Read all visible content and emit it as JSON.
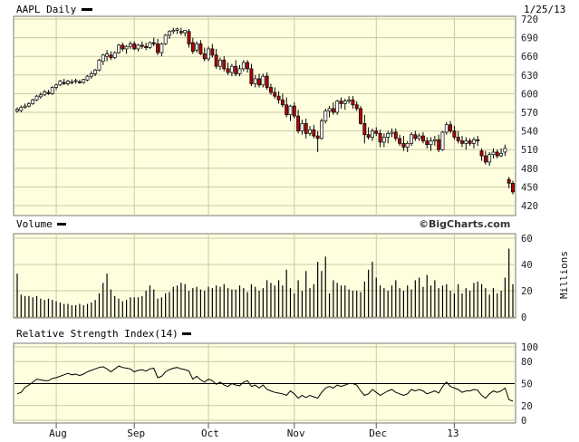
{
  "chart_data": {
    "type": "candlestick",
    "symbol_label": "AAPL Daily",
    "date_label": "1/25/13",
    "watermark": "©BigCharts.com",
    "months": [
      {
        "label": "Aug",
        "index": 10
      },
      {
        "label": "Sep",
        "index": 30
      },
      {
        "label": "Oct",
        "index": 49
      },
      {
        "label": "Nov",
        "index": 71
      },
      {
        "label": "Dec",
        "index": 92
      },
      {
        "label": "13",
        "index": 112
      }
    ],
    "price": {
      "ylim": [
        420,
        720
      ],
      "yticks": [
        "720",
        "690",
        "660",
        "630",
        "600",
        "570",
        "540",
        "510",
        "480",
        "450",
        "420"
      ],
      "ohlc": [
        [
          572,
          578,
          569,
          575
        ],
        [
          573,
          581,
          570,
          578
        ],
        [
          578,
          584,
          576,
          580
        ],
        [
          580,
          586,
          578,
          584
        ],
        [
          584,
          592,
          582,
          590
        ],
        [
          590,
          598,
          588,
          596
        ],
        [
          595,
          602,
          592,
          598
        ],
        [
          598,
          606,
          596,
          603
        ],
        [
          602,
          606,
          598,
          600
        ],
        [
          600,
          612,
          598,
          610
        ],
        [
          610,
          616,
          606,
          614
        ],
        [
          614,
          622,
          612,
          620
        ],
        [
          618,
          624,
          614,
          616
        ],
        [
          616,
          622,
          613,
          620
        ],
        [
          618,
          623,
          615,
          619
        ],
        [
          620,
          624,
          616,
          621
        ],
        [
          619,
          622,
          616,
          618
        ],
        [
          618,
          624,
          616,
          623
        ],
        [
          622,
          630,
          620,
          628
        ],
        [
          628,
          636,
          624,
          632
        ],
        [
          632,
          640,
          628,
          638
        ],
        [
          638,
          656,
          636,
          654
        ],
        [
          652,
          664,
          646,
          662
        ],
        [
          660,
          670,
          652,
          664
        ],
        [
          662,
          668,
          654,
          658
        ],
        [
          658,
          668,
          656,
          666
        ],
        [
          666,
          680,
          664,
          678
        ],
        [
          678,
          682,
          668,
          672
        ],
        [
          672,
          678,
          664,
          676
        ],
        [
          676,
          684,
          672,
          680
        ],
        [
          680,
          684,
          670,
          672
        ],
        [
          672,
          680,
          668,
          678
        ],
        [
          678,
          684,
          672,
          676
        ],
        [
          676,
          682,
          670,
          674
        ],
        [
          674,
          684,
          672,
          682
        ],
        [
          682,
          690,
          676,
          680
        ],
        [
          680,
          688,
          662,
          666
        ],
        [
          666,
          682,
          660,
          680
        ],
        [
          680,
          696,
          678,
          694
        ],
        [
          694,
          702,
          688,
          700
        ],
        [
          700,
          706,
          696,
          702
        ],
        [
          702,
          706,
          696,
          704
        ],
        [
          700,
          706,
          694,
          698
        ],
        [
          698,
          702,
          692,
          702
        ],
        [
          700,
          704,
          674,
          680
        ],
        [
          682,
          690,
          664,
          668
        ],
        [
          670,
          684,
          666,
          680
        ],
        [
          680,
          686,
          662,
          664
        ],
        [
          664,
          674,
          652,
          656
        ],
        [
          656,
          676,
          652,
          672
        ],
        [
          672,
          680,
          658,
          662
        ],
        [
          662,
          672,
          640,
          644
        ],
        [
          644,
          658,
          638,
          654
        ],
        [
          654,
          660,
          636,
          640
        ],
        [
          640,
          650,
          630,
          634
        ],
        [
          634,
          648,
          628,
          644
        ],
        [
          644,
          654,
          628,
          632
        ],
        [
          632,
          646,
          628,
          640
        ],
        [
          640,
          654,
          636,
          650
        ],
        [
          650,
          654,
          634,
          640
        ],
        [
          640,
          648,
          612,
          616
        ],
        [
          616,
          630,
          610,
          624
        ],
        [
          624,
          632,
          610,
          614
        ],
        [
          614,
          632,
          610,
          628
        ],
        [
          628,
          634,
          606,
          610
        ],
        [
          610,
          616,
          598,
          602
        ],
        [
          602,
          610,
          592,
          596
        ],
        [
          596,
          604,
          584,
          590
        ],
        [
          590,
          600,
          578,
          582
        ],
        [
          582,
          594,
          562,
          566
        ],
        [
          566,
          582,
          556,
          580
        ],
        [
          580,
          586,
          560,
          564
        ],
        [
          564,
          574,
          536,
          540
        ],
        [
          540,
          558,
          534,
          552
        ],
        [
          552,
          560,
          528,
          536
        ],
        [
          536,
          548,
          532,
          542
        ],
        [
          542,
          550,
          528,
          532
        ],
        [
          532,
          540,
          506,
          528
        ],
        [
          528,
          560,
          526,
          556
        ],
        [
          556,
          576,
          552,
          572
        ],
        [
          572,
          580,
          562,
          576
        ],
        [
          576,
          586,
          566,
          570
        ],
        [
          570,
          590,
          566,
          588
        ],
        [
          588,
          594,
          576,
          584
        ],
        [
          584,
          592,
          574,
          588
        ],
        [
          588,
          596,
          584,
          590
        ],
        [
          590,
          596,
          576,
          582
        ],
        [
          582,
          588,
          572,
          576
        ],
        [
          576,
          580,
          550,
          552
        ],
        [
          552,
          566,
          520,
          534
        ],
        [
          534,
          546,
          526,
          530
        ],
        [
          530,
          544,
          524,
          540
        ],
        [
          540,
          546,
          532,
          536
        ],
        [
          536,
          542,
          514,
          522
        ],
        [
          522,
          536,
          514,
          530
        ],
        [
          530,
          540,
          520,
          536
        ],
        [
          536,
          544,
          530,
          538
        ],
        [
          538,
          544,
          524,
          528
        ],
        [
          528,
          534,
          516,
          520
        ],
        [
          520,
          532,
          508,
          514
        ],
        [
          514,
          524,
          506,
          520
        ],
        [
          520,
          538,
          516,
          534
        ],
        [
          534,
          540,
          524,
          528
        ],
        [
          528,
          536,
          524,
          532
        ],
        [
          532,
          538,
          520,
          524
        ],
        [
          524,
          530,
          512,
          518
        ],
        [
          518,
          530,
          508,
          524
        ],
        [
          524,
          532,
          516,
          526
        ],
        [
          526,
          534,
          506,
          510
        ],
        [
          510,
          540,
          508,
          538
        ],
        [
          538,
          554,
          534,
          550
        ],
        [
          550,
          556,
          536,
          540
        ],
        [
          540,
          548,
          526,
          530
        ],
        [
          530,
          540,
          520,
          524
        ],
        [
          524,
          532,
          514,
          520
        ],
        [
          520,
          530,
          510,
          524
        ],
        [
          524,
          528,
          516,
          520
        ],
        [
          520,
          530,
          512,
          526
        ],
        [
          526,
          532,
          516,
          524
        ],
        [
          508,
          512,
          492,
          500
        ],
        [
          500,
          508,
          486,
          490
        ],
        [
          490,
          506,
          484,
          502
        ],
        [
          502,
          512,
          496,
          506
        ],
        [
          506,
          510,
          496,
          500
        ],
        [
          500,
          512,
          498,
          504
        ],
        [
          506,
          518,
          500,
          512
        ],
        [
          462,
          466,
          448,
          456
        ],
        [
          456,
          460,
          438,
          442
        ]
      ]
    },
    "volume": {
      "label": "Volume",
      "unit": "Millions",
      "ylim": [
        0,
        60
      ],
      "yticks": [
        "60",
        "40",
        "20",
        "0"
      ],
      "values": [
        33,
        17,
        16,
        16,
        15,
        16,
        14,
        13,
        14,
        13,
        12,
        11,
        10,
        10,
        9,
        9,
        10,
        9,
        10,
        11,
        13,
        18,
        26,
        33,
        21,
        16,
        14,
        12,
        13,
        15,
        15,
        15,
        16,
        20,
        24,
        21,
        14,
        15,
        18,
        19,
        23,
        24,
        26,
        25,
        20,
        22,
        23,
        21,
        20,
        23,
        22,
        24,
        23,
        25,
        22,
        21,
        21,
        24,
        22,
        19,
        25,
        23,
        20,
        22,
        28,
        26,
        24,
        28,
        24,
        36,
        22,
        18,
        28,
        20,
        35,
        22,
        25,
        42,
        35,
        46,
        18,
        28,
        26,
        24,
        24,
        21,
        20,
        20,
        19,
        27,
        36,
        42,
        30,
        24,
        22,
        20,
        24,
        28,
        22,
        20,
        24,
        21,
        28,
        30,
        23,
        32,
        24,
        28,
        22,
        24,
        25,
        20,
        18,
        25,
        18,
        22,
        20,
        26,
        27,
        25,
        22,
        17,
        22,
        18,
        20,
        30,
        52,
        25
      ]
    },
    "rsi": {
      "label": "Relative Strength Index(14)",
      "ylim": [
        0,
        100
      ],
      "yticks": [
        "100",
        "80",
        "50",
        "20",
        "0"
      ],
      "levels": [
        50
      ],
      "values": [
        36,
        38,
        45,
        48,
        52,
        56,
        55,
        54,
        54,
        57,
        58,
        60,
        62,
        64,
        62,
        63,
        61,
        63,
        66,
        68,
        70,
        72,
        73,
        70,
        66,
        70,
        74,
        72,
        71,
        70,
        66,
        68,
        69,
        67,
        70,
        71,
        58,
        60,
        66,
        69,
        71,
        72,
        70,
        69,
        67,
        56,
        60,
        55,
        52,
        56,
        54,
        49,
        52,
        48,
        46,
        50,
        48,
        47,
        52,
        54,
        46,
        48,
        44,
        48,
        42,
        40,
        38,
        37,
        36,
        34,
        40,
        36,
        30,
        34,
        31,
        34,
        32,
        30,
        38,
        44,
        46,
        44,
        48,
        46,
        48,
        50,
        50,
        48,
        40,
        34,
        36,
        42,
        38,
        34,
        37,
        40,
        42,
        38,
        36,
        34,
        36,
        42,
        40,
        42,
        40,
        36,
        38,
        40,
        37,
        46,
        52,
        46,
        44,
        42,
        38,
        40,
        40,
        42,
        41,
        34,
        30,
        36,
        40,
        38,
        40,
        44,
        28,
        26
      ]
    }
  }
}
